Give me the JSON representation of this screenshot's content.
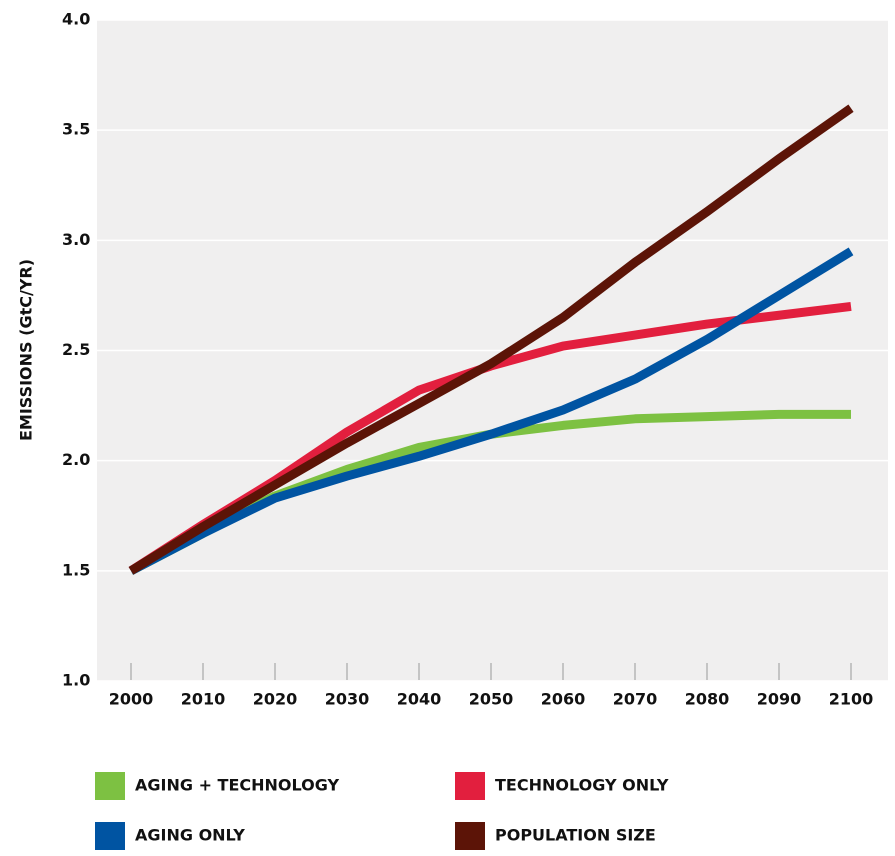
{
  "chart_data": {
    "type": "line",
    "y_label": "EMISSIONS (GtC/YR)",
    "x": [
      2000,
      2010,
      2020,
      2030,
      2040,
      2050,
      2060,
      2070,
      2080,
      2090,
      2100
    ],
    "xlim": [
      2000,
      2100
    ],
    "xticks": [
      2000,
      2010,
      2020,
      2030,
      2040,
      2050,
      2060,
      2070,
      2080,
      2090,
      2100
    ],
    "ylim": [
      1.0,
      4.0
    ],
    "yticks": [
      {
        "value": 1.0,
        "label": "1.0"
      },
      1.5,
      {
        "value": 2.0,
        "label": "2.0"
      },
      2.5,
      {
        "value": 3.0,
        "label": "3.0"
      },
      3.5,
      {
        "value": 4.0,
        "label": "4.0"
      }
    ],
    "grid": true,
    "series": [
      {
        "name": "AGING + TECHNOLOGY",
        "color": "#7dc142",
        "values": [
          1.5,
          1.67,
          1.84,
          1.96,
          2.06,
          2.12,
          2.16,
          2.19,
          2.2,
          2.21,
          2.21
        ]
      },
      {
        "name": "TECHNOLOGY ONLY",
        "color": "#e21f3e",
        "values": [
          1.5,
          1.71,
          1.91,
          2.13,
          2.32,
          2.43,
          2.52,
          2.57,
          2.62,
          2.66,
          2.7
        ]
      },
      {
        "name": "AGING ONLY",
        "color": "#0054a2",
        "values": [
          1.5,
          1.67,
          1.83,
          1.93,
          2.02,
          2.12,
          2.23,
          2.37,
          2.55,
          2.75,
          2.95
        ]
      },
      {
        "name": "POPULATION SIZE",
        "color": "#5c1407",
        "values": [
          1.5,
          1.7,
          1.89,
          2.08,
          2.26,
          2.44,
          2.65,
          2.9,
          3.13,
          3.37,
          3.6
        ]
      }
    ]
  }
}
